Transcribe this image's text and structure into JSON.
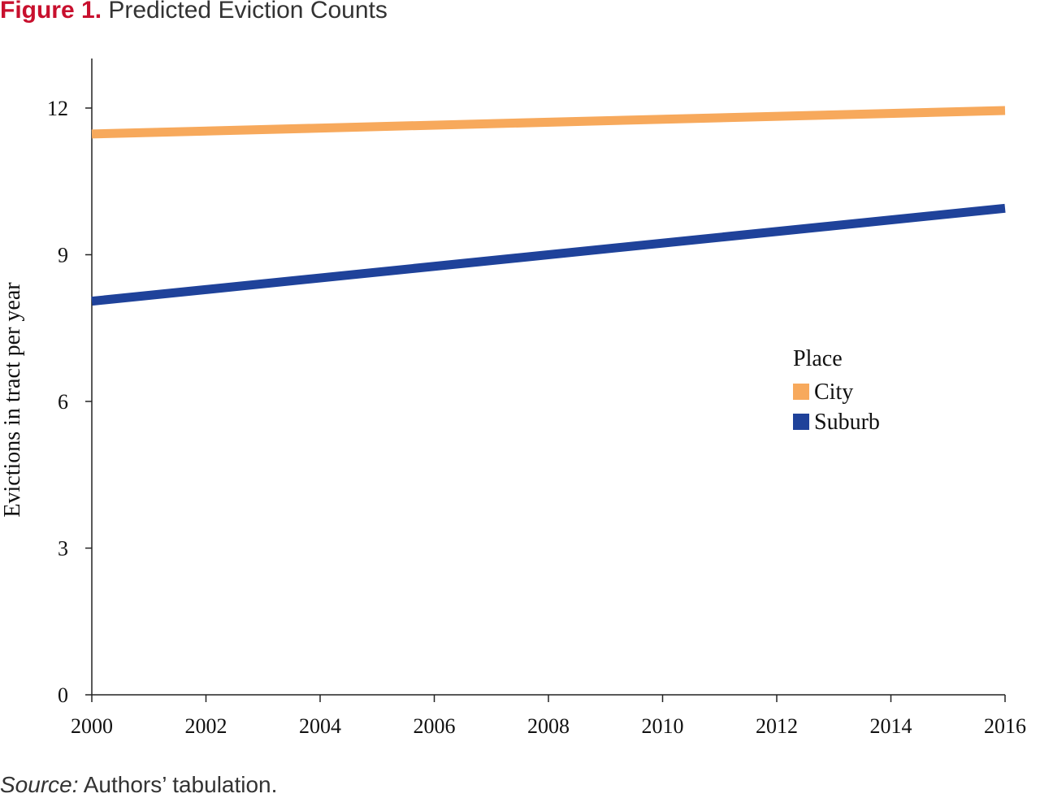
{
  "figure": {
    "label": "Figure 1.",
    "title": "Predicted Eviction Counts"
  },
  "source": {
    "label": "Source:",
    "text": "Authors’ tabulation."
  },
  "chart_data": {
    "type": "line",
    "title": "Predicted Eviction Counts",
    "xlabel": "",
    "ylabel": "Evictions in tract per year",
    "xlim": [
      2000,
      2016
    ],
    "ylim": [
      0,
      13
    ],
    "x_ticks": [
      2000,
      2002,
      2004,
      2006,
      2008,
      2010,
      2012,
      2014,
      2016
    ],
    "y_ticks": [
      0,
      3,
      6,
      9,
      12
    ],
    "grid": false,
    "legend": {
      "title": "Place",
      "placement": "right"
    },
    "x": [
      2000,
      2016
    ],
    "series": [
      {
        "name": "City",
        "color": "#f7a95c",
        "values": [
          11.47,
          11.95
        ]
      },
      {
        "name": "Suburb",
        "color": "#1f429a",
        "values": [
          8.05,
          9.95
        ]
      }
    ]
  }
}
